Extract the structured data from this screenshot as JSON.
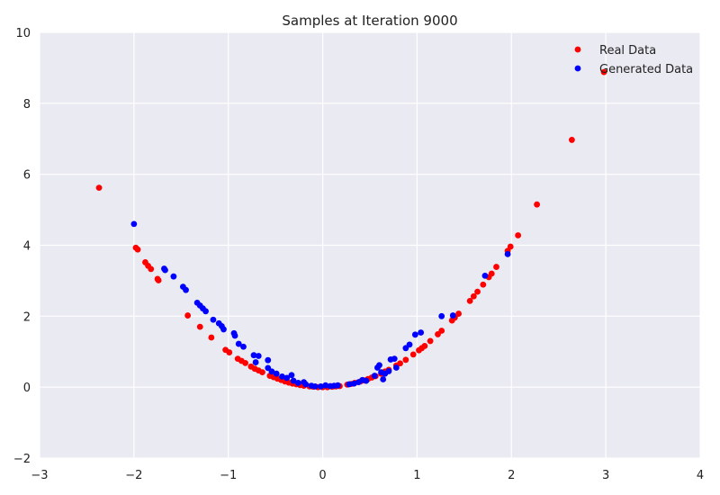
{
  "chart_data": {
    "type": "scatter",
    "title": "Samples at Iteration 9000",
    "xlabel": "",
    "ylabel": "",
    "xlim": [
      -3,
      4
    ],
    "ylim": [
      -2,
      10
    ],
    "xticks": [
      -3,
      -2,
      -1,
      0,
      1,
      2,
      3,
      4
    ],
    "yticks": [
      -2,
      0,
      2,
      4,
      6,
      8,
      10
    ],
    "xtick_labels": [
      "−3",
      "−2",
      "−1",
      "0",
      "1",
      "2",
      "3",
      "4"
    ],
    "ytick_labels": [
      "−2",
      "0",
      "2",
      "4",
      "6",
      "8",
      "10"
    ],
    "grid": true,
    "legend_position": "top-right",
    "series": [
      {
        "name": "Real Data",
        "color": "#ff0000",
        "points": [
          [
            -2.37,
            5.62
          ],
          [
            -1.98,
            3.93
          ],
          [
            -1.96,
            3.88
          ],
          [
            -1.88,
            3.52
          ],
          [
            -1.85,
            3.42
          ],
          [
            -1.82,
            3.33
          ],
          [
            -1.75,
            3.05
          ],
          [
            -1.74,
            3.01
          ],
          [
            -1.43,
            2.02
          ],
          [
            -1.3,
            1.7
          ],
          [
            -1.18,
            1.4
          ],
          [
            -1.03,
            1.05
          ],
          [
            -0.99,
            0.98
          ],
          [
            -0.9,
            0.8
          ],
          [
            -0.86,
            0.74
          ],
          [
            -0.82,
            0.68
          ],
          [
            -0.76,
            0.58
          ],
          [
            -0.72,
            0.52
          ],
          [
            -0.68,
            0.47
          ],
          [
            -0.64,
            0.42
          ],
          [
            -0.56,
            0.32
          ],
          [
            -0.52,
            0.28
          ],
          [
            -0.48,
            0.24
          ],
          [
            -0.44,
            0.2
          ],
          [
            -0.4,
            0.16
          ],
          [
            -0.36,
            0.13
          ],
          [
            -0.32,
            0.1
          ],
          [
            -0.28,
            0.08
          ],
          [
            -0.24,
            0.06
          ],
          [
            -0.2,
            0.04
          ],
          [
            -0.14,
            0.02
          ],
          [
            -0.1,
            0.01
          ],
          [
            -0.05,
            0.0
          ],
          [
            0.0,
            0.0
          ],
          [
            0.05,
            0.0
          ],
          [
            0.1,
            0.01
          ],
          [
            0.14,
            0.02
          ],
          [
            0.18,
            0.03
          ],
          [
            0.26,
            0.07
          ],
          [
            0.3,
            0.09
          ],
          [
            0.34,
            0.12
          ],
          [
            0.4,
            0.16
          ],
          [
            0.44,
            0.19
          ],
          [
            0.48,
            0.23
          ],
          [
            0.52,
            0.27
          ],
          [
            0.56,
            0.31
          ],
          [
            0.62,
            0.38
          ],
          [
            0.66,
            0.44
          ],
          [
            0.7,
            0.49
          ],
          [
            0.78,
            0.61
          ],
          [
            0.82,
            0.67
          ],
          [
            0.88,
            0.77
          ],
          [
            0.96,
            0.92
          ],
          [
            1.02,
            1.04
          ],
          [
            1.05,
            1.1
          ],
          [
            1.08,
            1.16
          ],
          [
            1.14,
            1.3
          ],
          [
            1.22,
            1.49
          ],
          [
            1.26,
            1.59
          ],
          [
            1.37,
            1.88
          ],
          [
            1.4,
            1.96
          ],
          [
            1.44,
            2.07
          ],
          [
            1.56,
            2.43
          ],
          [
            1.6,
            2.56
          ],
          [
            1.64,
            2.69
          ],
          [
            1.7,
            2.89
          ],
          [
            1.76,
            3.1
          ],
          [
            1.79,
            3.2
          ],
          [
            1.84,
            3.39
          ],
          [
            1.96,
            3.84
          ],
          [
            1.99,
            3.96
          ],
          [
            2.07,
            4.28
          ],
          [
            2.27,
            5.15
          ],
          [
            2.64,
            6.97
          ],
          [
            2.98,
            8.88
          ]
        ]
      },
      {
        "name": "Generated Data",
        "color": "#0000ff",
        "points": [
          [
            -2.0,
            4.6
          ],
          [
            -1.68,
            3.34
          ],
          [
            -1.67,
            3.3
          ],
          [
            -1.58,
            3.12
          ],
          [
            -1.48,
            2.83
          ],
          [
            -1.45,
            2.74
          ],
          [
            -1.33,
            2.38
          ],
          [
            -1.3,
            2.3
          ],
          [
            -1.27,
            2.22
          ],
          [
            -1.24,
            2.14
          ],
          [
            -1.16,
            1.9
          ],
          [
            -1.1,
            1.8
          ],
          [
            -1.07,
            1.72
          ],
          [
            -1.05,
            1.63
          ],
          [
            -0.94,
            1.52
          ],
          [
            -0.93,
            1.45
          ],
          [
            -0.89,
            1.22
          ],
          [
            -0.84,
            1.14
          ],
          [
            -0.73,
            0.9
          ],
          [
            -0.68,
            0.88
          ],
          [
            -0.71,
            0.7
          ],
          [
            -0.58,
            0.76
          ],
          [
            -0.58,
            0.54
          ],
          [
            -0.54,
            0.44
          ],
          [
            -0.49,
            0.38
          ],
          [
            -0.43,
            0.3
          ],
          [
            -0.38,
            0.26
          ],
          [
            -0.33,
            0.34
          ],
          [
            -0.31,
            0.18
          ],
          [
            -0.26,
            0.12
          ],
          [
            -0.2,
            0.14
          ],
          [
            -0.18,
            0.08
          ],
          [
            -0.12,
            0.04
          ],
          [
            -0.08,
            0.02
          ],
          [
            -0.02,
            0.02
          ],
          [
            0.03,
            0.05
          ],
          [
            0.08,
            0.03
          ],
          [
            0.12,
            0.04
          ],
          [
            0.16,
            0.05
          ],
          [
            0.28,
            0.08
          ],
          [
            0.33,
            0.1
          ],
          [
            0.38,
            0.14
          ],
          [
            0.42,
            0.2
          ],
          [
            0.46,
            0.18
          ],
          [
            0.55,
            0.32
          ],
          [
            0.58,
            0.55
          ],
          [
            0.6,
            0.62
          ],
          [
            0.62,
            0.42
          ],
          [
            0.64,
            0.22
          ],
          [
            0.66,
            0.38
          ],
          [
            0.7,
            0.45
          ],
          [
            0.72,
            0.78
          ],
          [
            0.76,
            0.8
          ],
          [
            0.78,
            0.55
          ],
          [
            0.88,
            1.1
          ],
          [
            0.92,
            1.2
          ],
          [
            0.98,
            1.48
          ],
          [
            1.04,
            1.54
          ],
          [
            1.26,
            2.0
          ],
          [
            1.38,
            2.02
          ],
          [
            1.72,
            3.14
          ],
          [
            1.96,
            3.75
          ]
        ]
      }
    ]
  }
}
